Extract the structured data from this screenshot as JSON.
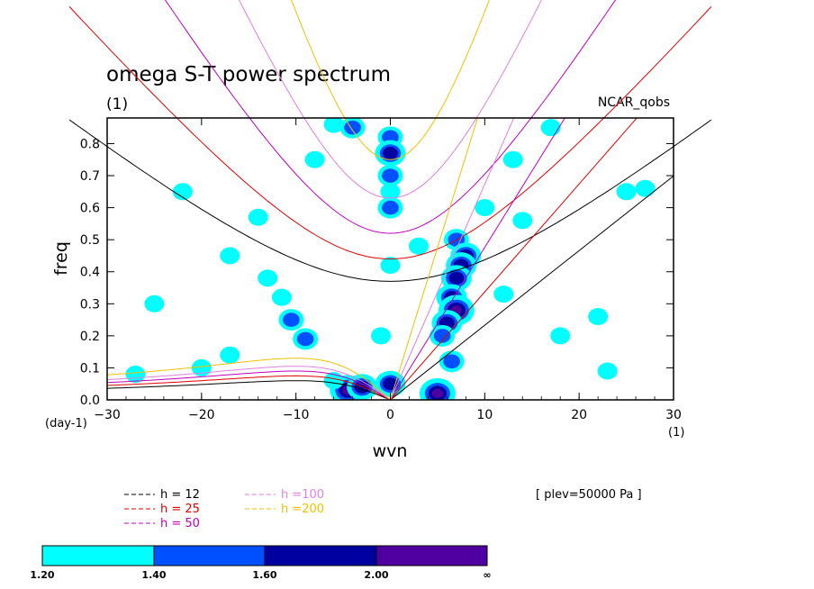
{
  "chart_data": {
    "type": "heatmap",
    "title": "omega S-T power spectrum",
    "subtitle": "(1)",
    "right_label": "NCAR_qobs",
    "xlabel": "wvn",
    "ylabel": "freq",
    "x_unit_label": "(1)",
    "y_unit_label": "(day-1)",
    "xlim": [
      -30,
      30
    ],
    "ylim": [
      0,
      0.88
    ],
    "x_ticks": [
      -30,
      -20,
      -10,
      0,
      10,
      20,
      30
    ],
    "x_tick_labels": [
      "−30",
      "−20",
      "−10",
      "0",
      "10",
      "20",
      "30"
    ],
    "y_ticks": [
      0.0,
      0.1,
      0.2,
      0.3,
      0.4,
      0.5,
      0.6,
      0.7,
      0.8
    ],
    "y_tick_labels": [
      "0.0",
      "0.1",
      "0.2",
      "0.3",
      "0.4",
      "0.5",
      "0.6",
      "0.7",
      "0.8"
    ],
    "plev_note": "[ plev=50000 Pa ]",
    "legend": [
      {
        "label": "h = 12",
        "color": "#000000",
        "h": 12
      },
      {
        "label": "h = 25",
        "color": "#e00000",
        "h": 25
      },
      {
        "label": "h = 50",
        "color": "#c000c0",
        "h": 50
      },
      {
        "label": "h =100",
        "color": "#e080e0",
        "h": 100
      },
      {
        "label": "h =200",
        "color": "#f0c000",
        "h": 200
      }
    ],
    "colorbar": {
      "labels": [
        "1.20",
        "1.40",
        "1.60",
        "2.00",
        "∞"
      ],
      "colors": [
        "#00ffff",
        "#0050ff",
        "#0000a0",
        "#5000a0"
      ]
    },
    "dispersion_curves": {
      "description_free": true,
      "kelvin_slopes_freq_per_wvn": [
        0.0233,
        0.0337,
        0.0476,
        0.0673,
        0.0952
      ],
      "eig_min_freq": [
        0.37,
        0.44,
        0.52,
        0.63,
        0.75
      ],
      "rossby_peak_freq": [
        0.06,
        0.075,
        0.09,
        0.105,
        0.13
      ]
    },
    "power_blobs": [
      {
        "wvn": 0,
        "freq": 0.82,
        "level": 2
      },
      {
        "wvn": 0,
        "freq": 0.77,
        "level": 3
      },
      {
        "wvn": 0,
        "freq": 0.7,
        "level": 2
      },
      {
        "wvn": 0,
        "freq": 0.65,
        "level": 1
      },
      {
        "wvn": 0,
        "freq": 0.6,
        "level": 2
      },
      {
        "wvn": 0,
        "freq": 0.42,
        "level": 1
      },
      {
        "wvn": 0,
        "freq": 0.05,
        "level": 3
      },
      {
        "wvn": 7,
        "freq": 0.5,
        "level": 2
      },
      {
        "wvn": 8,
        "freq": 0.45,
        "level": 3
      },
      {
        "wvn": 7.5,
        "freq": 0.42,
        "level": 3
      },
      {
        "wvn": 7,
        "freq": 0.38,
        "level": 3
      },
      {
        "wvn": 6.5,
        "freq": 0.32,
        "level": 3
      },
      {
        "wvn": 7,
        "freq": 0.28,
        "level": 4
      },
      {
        "wvn": 6,
        "freq": 0.24,
        "level": 3
      },
      {
        "wvn": 5.5,
        "freq": 0.2,
        "level": 2
      },
      {
        "wvn": 6.5,
        "freq": 0.12,
        "level": 2
      },
      {
        "wvn": 5,
        "freq": 0.02,
        "level": 4
      },
      {
        "wvn": -4.5,
        "freq": 0.03,
        "level": 4
      },
      {
        "wvn": -3,
        "freq": 0.04,
        "level": 3
      },
      {
        "wvn": -6,
        "freq": 0.06,
        "level": 1
      },
      {
        "wvn": -9,
        "freq": 0.19,
        "level": 2
      },
      {
        "wvn": -10.5,
        "freq": 0.25,
        "level": 2
      },
      {
        "wvn": -11.5,
        "freq": 0.32,
        "level": 1
      },
      {
        "wvn": -13,
        "freq": 0.38,
        "level": 1
      },
      {
        "wvn": -8,
        "freq": 0.75,
        "level": 1
      },
      {
        "wvn": 3,
        "freq": 0.48,
        "level": 1
      },
      {
        "wvn": 10,
        "freq": 0.6,
        "level": 1
      },
      {
        "wvn": 14,
        "freq": 0.56,
        "level": 1
      },
      {
        "wvn": 17,
        "freq": 0.85,
        "level": 1
      },
      {
        "wvn": 13,
        "freq": 0.75,
        "level": 1
      },
      {
        "wvn": -22,
        "freq": 0.65,
        "level": 1
      },
      {
        "wvn": -27,
        "freq": 0.08,
        "level": 1
      },
      {
        "wvn": -20,
        "freq": 0.1,
        "level": 1
      },
      {
        "wvn": -17,
        "freq": 0.14,
        "level": 1
      },
      {
        "wvn": -25,
        "freq": 0.3,
        "level": 1
      },
      {
        "wvn": -14,
        "freq": 0.57,
        "level": 1
      },
      {
        "wvn": -17,
        "freq": 0.45,
        "level": 1
      },
      {
        "wvn": 12,
        "freq": 0.33,
        "level": 1
      },
      {
        "wvn": 18,
        "freq": 0.2,
        "level": 1
      },
      {
        "wvn": 22,
        "freq": 0.26,
        "level": 1
      },
      {
        "wvn": 25,
        "freq": 0.65,
        "level": 1
      },
      {
        "wvn": 27,
        "freq": 0.66,
        "level": 1
      },
      {
        "wvn": 23,
        "freq": 0.09,
        "level": 1
      },
      {
        "wvn": -6,
        "freq": 0.86,
        "level": 1
      },
      {
        "wvn": -4,
        "freq": 0.85,
        "level": 2
      },
      {
        "wvn": -1,
        "freq": 0.2,
        "level": 1
      }
    ]
  }
}
